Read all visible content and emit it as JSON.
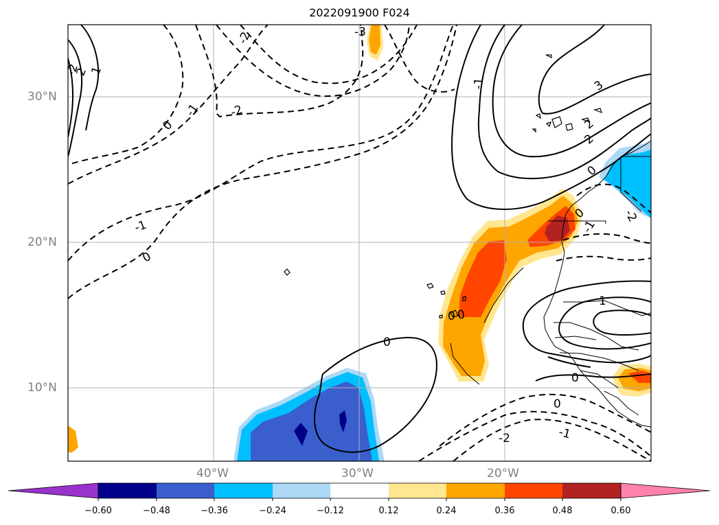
{
  "title": "2022091900 F024",
  "map": {
    "lat_labels": [
      "30°N",
      "20°N",
      "10°N"
    ],
    "lon_labels": [
      "40°W",
      "30°W",
      "20°W"
    ],
    "contour_labels": [
      "-3",
      "-2",
      "-2",
      "-1",
      "0",
      "-1",
      "0",
      "-2",
      "2",
      "1",
      "0",
      "0",
      "0",
      "-1",
      "-1",
      "3",
      "2",
      "2",
      "0",
      "0",
      "-1",
      "-2",
      "1",
      "0",
      "0",
      "-1",
      "-2"
    ]
  },
  "colorbar": {
    "ticks": [
      "−0.60",
      "−0.48",
      "−0.36",
      "−0.24",
      "−0.12",
      "0.12",
      "0.24",
      "0.36",
      "0.48",
      "0.60"
    ],
    "colors": [
      "#9932cc",
      "#00008b",
      "#3a5fcd",
      "#00bfff",
      "#add8f6",
      "#ffffff",
      "#ffe68f",
      "#ffa500",
      "#ff4500",
      "#b22222",
      "#ff82ab"
    ]
  }
}
